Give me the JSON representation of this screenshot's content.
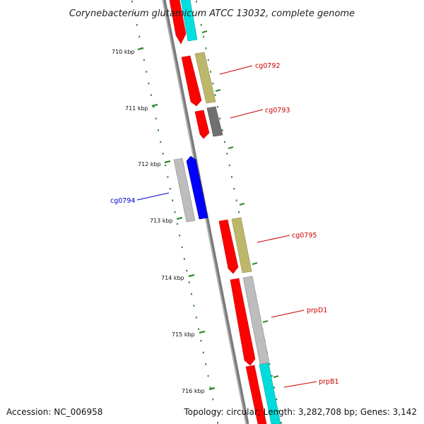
{
  "title": "Corynebacterium glutamicum ATCC 13032, complete genome",
  "footer": {
    "accession": "Accession: NC_006958",
    "summary": "Topology: circular; Length: 3,282,708 bp; Genes: 3,142"
  },
  "ticks": [
    "710 kbp",
    "711 kbp",
    "712 kbp",
    "713 kbp",
    "714 kbp",
    "715 kbp",
    "716 kbp"
  ],
  "gene_labels": [
    {
      "text": "cg0792",
      "color": "#cc0000"
    },
    {
      "text": "cg0793",
      "color": "#cc0000"
    },
    {
      "text": "cg0794",
      "color": "#0000cc"
    },
    {
      "text": "cg0795",
      "color": "#cc0000"
    },
    {
      "text": "prpD1",
      "color": "#cc0000"
    },
    {
      "text": "prpB1",
      "color": "#cc0000"
    }
  ],
  "colors": {
    "backbone": "#7a7a7a",
    "tick": "#2e8b2e",
    "cds_red": "#ff0000",
    "cds_blue": "#0000ff",
    "feature_tan": "#bdb76b",
    "feature_gray": "#bdbdbd",
    "feature_dark": "#707070",
    "feature_cyan": "#00dcdc"
  }
}
